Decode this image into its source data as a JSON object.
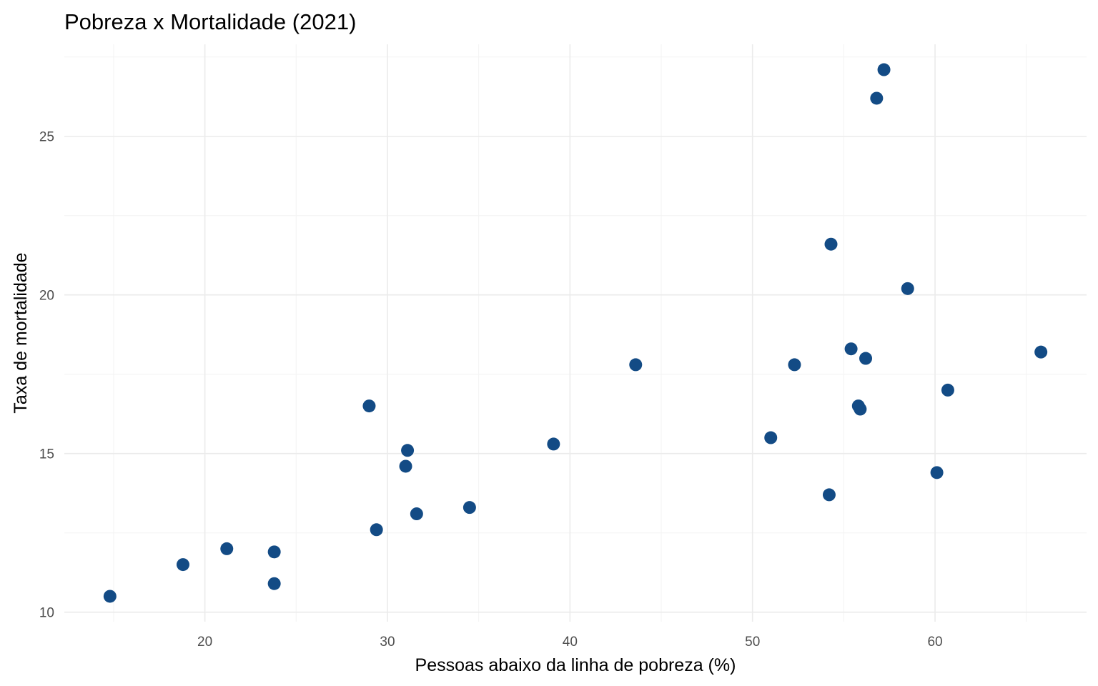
{
  "chart_data": {
    "type": "scatter",
    "title": "Pobreza x Mortalidade (2021)",
    "xlabel": "Pessoas abaixo da linha de pobreza (%)",
    "ylabel": "Taxa de mortalidade",
    "xlim": [
      12.3,
      68.3
    ],
    "ylim": [
      9.7,
      27.9
    ],
    "xticks": [
      20,
      30,
      40,
      50,
      60
    ],
    "yticks": [
      10,
      15,
      20,
      25
    ],
    "xtick_labels": [
      "20",
      "30",
      "40",
      "50",
      "60"
    ],
    "ytick_labels": [
      "10",
      "15",
      "20",
      "25"
    ],
    "grid": true,
    "point_color": "#134b85",
    "points": [
      {
        "x": 14.8,
        "y": 10.5
      },
      {
        "x": 18.8,
        "y": 11.5
      },
      {
        "x": 21.2,
        "y": 12.0
      },
      {
        "x": 23.8,
        "y": 11.9
      },
      {
        "x": 23.8,
        "y": 10.9
      },
      {
        "x": 29.0,
        "y": 16.5
      },
      {
        "x": 29.4,
        "y": 12.6
      },
      {
        "x": 31.1,
        "y": 15.1
      },
      {
        "x": 31.0,
        "y": 14.6
      },
      {
        "x": 31.6,
        "y": 13.1
      },
      {
        "x": 34.5,
        "y": 13.3
      },
      {
        "x": 39.1,
        "y": 15.3
      },
      {
        "x": 43.6,
        "y": 17.8
      },
      {
        "x": 51.0,
        "y": 15.5
      },
      {
        "x": 52.3,
        "y": 17.8
      },
      {
        "x": 54.2,
        "y": 13.7
      },
      {
        "x": 54.3,
        "y": 21.6
      },
      {
        "x": 55.4,
        "y": 18.3
      },
      {
        "x": 56.2,
        "y": 18.0
      },
      {
        "x": 55.8,
        "y": 16.5
      },
      {
        "x": 55.9,
        "y": 16.4
      },
      {
        "x": 56.8,
        "y": 26.2
      },
      {
        "x": 57.2,
        "y": 27.1
      },
      {
        "x": 58.5,
        "y": 20.2
      },
      {
        "x": 60.1,
        "y": 14.4
      },
      {
        "x": 60.7,
        "y": 17.0
      },
      {
        "x": 65.8,
        "y": 18.2
      }
    ]
  }
}
